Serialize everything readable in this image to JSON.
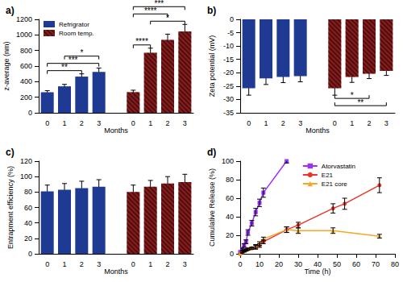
{
  "chart_data": [
    {
      "type": "bar",
      "title": "a)",
      "x_label": "Months",
      "y_label": "z-average (nm)",
      "categories": [
        "0",
        "1",
        "2",
        "3",
        null,
        "0",
        "1",
        "2",
        "3"
      ],
      "series": [
        {
          "name": "Refrigrator",
          "color": "#1f3a93",
          "values": [
            265,
            340,
            465,
            525,
            null,
            null,
            null,
            null,
            null
          ],
          "errors": [
            20,
            25,
            35,
            50,
            null,
            null,
            null,
            null,
            null
          ]
        },
        {
          "name": "Room temp.",
          "color": "#8b1c1c",
          "values": [
            null,
            null,
            null,
            null,
            null,
            265,
            770,
            935,
            1045
          ],
          "errors": [
            null,
            null,
            null,
            null,
            null,
            25,
            60,
            75,
            90
          ]
        }
      ],
      "significance": [
        {
          "from": 0,
          "to": 2,
          "label": "**"
        },
        {
          "from": 0,
          "to": 3,
          "label": "***"
        },
        {
          "from": 1,
          "to": 3,
          "label": "*"
        },
        {
          "from": 5,
          "to": 6,
          "label": "****"
        },
        {
          "from": 6,
          "to": 8,
          "label": "*"
        },
        {
          "from": 5,
          "to": 7,
          "label": "****"
        },
        {
          "from": 5,
          "to": 8,
          "label": "***"
        }
      ],
      "ylim": [
        0,
        1200
      ],
      "yticks": [
        0,
        200,
        400,
        600,
        800,
        1000,
        1200
      ],
      "grid": false,
      "legend": "top-left"
    },
    {
      "type": "bar",
      "title": "b)",
      "x_label": "Months",
      "y_label": "Zeta potential (mV)",
      "categories": [
        "0",
        "1",
        "2",
        "3",
        null,
        "0",
        "1",
        "2",
        "3"
      ],
      "series": [
        {
          "name": "Refrigrator",
          "color": "#1f3a93",
          "values": [
            -25.8,
            -22.1,
            -21.6,
            -21.3,
            null,
            null,
            null,
            null,
            null
          ],
          "errors": [
            2.6,
            2.3,
            2.1,
            2.1,
            null,
            null,
            null,
            null,
            null
          ]
        },
        {
          "name": "Room temp.",
          "color": "#8b1c1c",
          "values": [
            null,
            null,
            null,
            null,
            null,
            -25.8,
            -21.6,
            -20.4,
            -19.3
          ],
          "errors": [
            null,
            null,
            null,
            null,
            null,
            2.6,
            2.0,
            1.8,
            1.7
          ]
        }
      ],
      "significance": [
        {
          "from": 5,
          "to": 7,
          "label": "*"
        },
        {
          "from": 5,
          "to": 8,
          "label": "**"
        }
      ],
      "ylim": [
        -35,
        0
      ],
      "yticks": [
        -35,
        -30,
        -25,
        -20,
        -15,
        -10,
        -5,
        0
      ],
      "grid": false
    },
    {
      "type": "bar",
      "title": "c)",
      "x_label": "Months",
      "y_label": "Entrapment efficiency (%)",
      "categories": [
        "0",
        "1",
        "2",
        "3",
        null,
        "0",
        "1",
        "2",
        "3"
      ],
      "series": [
        {
          "name": "Refrigrator",
          "color": "#1f3a93",
          "values": [
            81,
            83,
            85,
            87,
            null,
            null,
            null,
            null,
            null
          ],
          "errors": [
            8,
            8,
            9,
            9,
            null,
            null,
            null,
            null,
            null
          ]
        },
        {
          "name": "Room temp.",
          "color": "#8b1c1c",
          "values": [
            null,
            null,
            null,
            null,
            null,
            80,
            87,
            91,
            93
          ],
          "errors": [
            null,
            null,
            null,
            null,
            null,
            9,
            8,
            9,
            10
          ]
        }
      ],
      "ylim": [
        0,
        120
      ],
      "yticks": [
        0,
        20,
        40,
        60,
        80,
        100,
        120
      ],
      "grid": false
    },
    {
      "type": "line",
      "title": "d)",
      "x_label": "Time (h)",
      "y_label": "Cumulative Release (%)",
      "series": [
        {
          "name": "Atorvastatin",
          "color": "#9b30ff",
          "marker": "square",
          "x": [
            0,
            1,
            2,
            3,
            4,
            6,
            8,
            10,
            12,
            24
          ],
          "values": [
            2,
            5,
            9,
            13,
            23,
            33,
            45,
            55,
            66,
            100
          ],
          "errors": [
            1,
            1,
            2,
            2,
            3,
            3,
            4,
            4,
            5,
            2
          ]
        },
        {
          "name": "E21",
          "color": "#e8362a",
          "marker": "circle",
          "x": [
            0,
            1,
            2,
            3,
            4,
            6,
            8,
            10,
            12,
            24,
            30,
            48,
            54,
            72
          ],
          "values": [
            0,
            2,
            3,
            4,
            5,
            6,
            7,
            9,
            13,
            26,
            31,
            49,
            54,
            74
          ],
          "errors": [
            0,
            1,
            1,
            1,
            1,
            1,
            2,
            2,
            2,
            3,
            3,
            5,
            6,
            8
          ]
        },
        {
          "name": "E21 core",
          "color": "#f5a623",
          "marker": "triangle",
          "x": [
            0,
            1,
            2,
            3,
            4,
            6,
            8,
            10,
            12,
            24,
            30,
            48,
            72
          ],
          "values": [
            0,
            2,
            3,
            4,
            5,
            6,
            8,
            11,
            16,
            26,
            25,
            25,
            19
          ],
          "errors": [
            0,
            1,
            1,
            1,
            1,
            1,
            2,
            2,
            2,
            3,
            3,
            3,
            2
          ]
        }
      ],
      "xlim": [
        0,
        80
      ],
      "xticks": [
        0,
        10,
        20,
        30,
        40,
        50,
        60,
        70,
        80
      ],
      "ylim": [
        0,
        100
      ],
      "yticks": [
        0,
        20,
        40,
        60,
        80,
        100
      ],
      "grid": false,
      "legend": "top"
    }
  ]
}
